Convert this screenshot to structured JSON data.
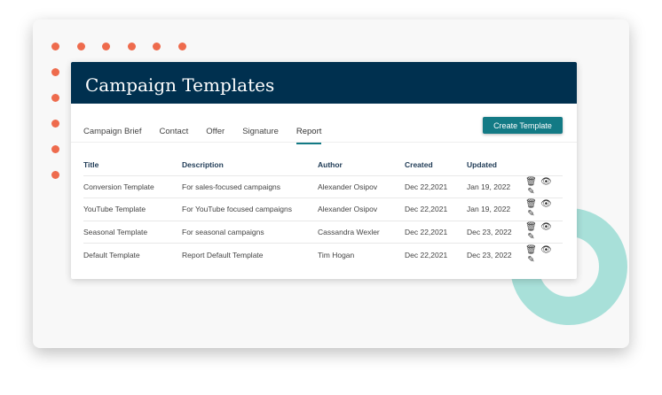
{
  "header": {
    "title": "Campaign Templates"
  },
  "tabs": [
    {
      "label": "Campaign Brief"
    },
    {
      "label": "Contact"
    },
    {
      "label": "Offer"
    },
    {
      "label": "Signature"
    },
    {
      "label": "Report",
      "active": true
    }
  ],
  "create_button": "Create Template",
  "table": {
    "columns": [
      "Title",
      "Description",
      "Author",
      "Created",
      "Updated"
    ],
    "rows": [
      [
        "Conversion Template",
        "For sales-focused campaigns",
        "Alexander Osipov",
        "Dec 22,2021",
        "Jan 19, 2022"
      ],
      [
        "YouTube Template",
        "For YouTube focused campaigns",
        "Alexander Osipov",
        "Dec 22,2021",
        "Jan 19, 2022"
      ],
      [
        "Seasonal Template",
        "For seasonal campaigns",
        "Cassandra Wexler",
        "Dec 22,2021",
        "Dec 23, 2022"
      ],
      [
        "Default Template",
        "Report Default Template",
        "Tim Hogan",
        "Dec 22,2021",
        "Dec 23, 2022"
      ]
    ],
    "row_actions": [
      "trash-icon",
      "eye-icon",
      "pencil-icon"
    ]
  },
  "colors": {
    "header": "#00304f",
    "accent": "#137a85",
    "dots": "#ee6b4d",
    "donut": "#a8e0d9"
  }
}
